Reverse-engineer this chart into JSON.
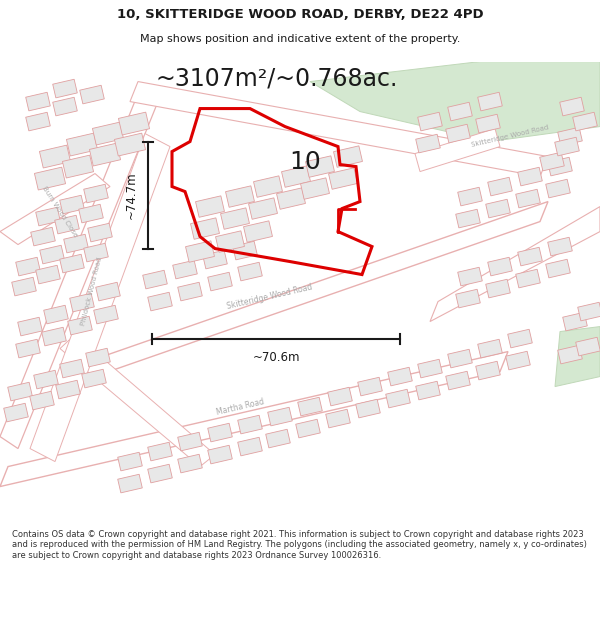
{
  "title_line1": "10, SKITTERIDGE WOOD ROAD, DERBY, DE22 4PD",
  "title_line2": "Map shows position and indicative extent of the property.",
  "area_text": "~3107m²/~0.768ac.",
  "label_10": "10",
  "dim_vertical": "~74.7m",
  "dim_horizontal": "~70.6m",
  "footer_text": "Contains OS data © Crown copyright and database right 2021. This information is subject to Crown copyright and database rights 2023 and is reproduced with the permission of HM Land Registry. The polygons (including the associated geometry, namely x, y co-ordinates) are subject to Crown copyright and database rights 2023 Ordnance Survey 100026316.",
  "map_bg": "#f7f4f4",
  "road_outline": "#e8b0b0",
  "road_fill": "#ffffff",
  "building_outline": "#e0a0a0",
  "building_fill": "#e8e8e8",
  "highlight_color": "#dd0000",
  "green_fill": "#d4e8d0",
  "green_stroke": "#c0d8b8",
  "dim_line_color": "#1a1a1a",
  "text_color": "#1a1a1a",
  "road_label_color": "#aaaaaa",
  "figsize": [
    6.0,
    6.25
  ],
  "dpi": 100
}
